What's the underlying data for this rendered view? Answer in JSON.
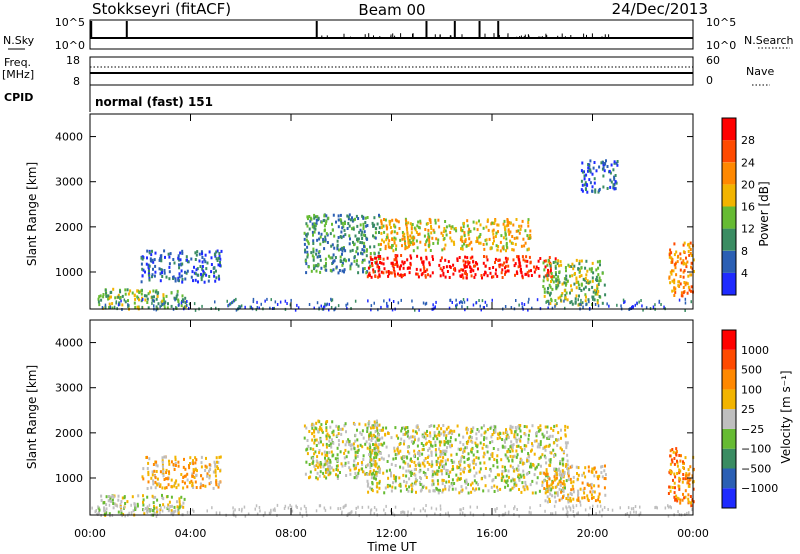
{
  "header": {
    "station": "Stokkseyri (fitACF)",
    "beam": "Beam 00",
    "date": "24/Dec/2013"
  },
  "top_panels": {
    "nsky_label": "N.Sky",
    "nsky_ticks": [
      "10^5",
      "10^0"
    ],
    "nsearch_label": "N.Search",
    "nsearch_ticks": [
      "10^5",
      "10^0"
    ],
    "freq_label": "Freq.",
    "freq_unit": "[MHz]",
    "freq_ticks": [
      "18",
      "8"
    ],
    "nave_label": "Nave",
    "nave_ticks": [
      "60",
      "0"
    ],
    "cpid_label": "CPID",
    "cpid_value": "normal (fast) 151"
  },
  "chart_data": [
    {
      "type": "heatmap",
      "name": "power",
      "ylabel": "Slant Range [km]",
      "ylim": [
        180,
        4500
      ],
      "yticks": [
        1000,
        2000,
        3000,
        4000
      ],
      "xlim_hours": [
        0,
        24
      ],
      "colorbar_label": "Power [dB]",
      "colorbar_ticks": [
        "4",
        "8",
        "12",
        "16",
        "20",
        "24",
        "28"
      ],
      "colors": [
        "#1f2bff",
        "#2b5fb4",
        "#3a8c62",
        "#66bb33",
        "#f2b400",
        "#ff8800",
        "#ff4a00",
        "#ff0000"
      ],
      "regions": [
        {
          "t0": 0.3,
          "t1": 3.8,
          "r0": 200,
          "r1": 650,
          "level": 3
        },
        {
          "t0": 2.0,
          "t1": 5.2,
          "r0": 800,
          "r1": 1500,
          "level": 1
        },
        {
          "t0": 8.5,
          "t1": 11.5,
          "r0": 1000,
          "r1": 2300,
          "level": 2
        },
        {
          "t0": 11.0,
          "t1": 18.5,
          "r0": 900,
          "r1": 1400,
          "level": 7
        },
        {
          "t0": 11.5,
          "t1": 17.5,
          "r0": 1500,
          "r1": 2200,
          "level": 4
        },
        {
          "t0": 18.0,
          "t1": 20.5,
          "r0": 300,
          "r1": 1300,
          "level": 3
        },
        {
          "t0": 23.0,
          "t1": 24.0,
          "r0": 500,
          "r1": 1700,
          "level": 5
        },
        {
          "t0": 19.5,
          "t1": 21.0,
          "r0": 2800,
          "r1": 3500,
          "level": 1
        }
      ]
    },
    {
      "type": "heatmap",
      "name": "velocity",
      "ylabel": "Slant Range [km]",
      "xlabel": "Time UT",
      "ylim": [
        180,
        4500
      ],
      "yticks": [
        1000,
        2000,
        3000,
        4000
      ],
      "xticks": [
        "00:00",
        "04:00",
        "08:00",
        "12:00",
        "16:00",
        "20:00",
        "00:00"
      ],
      "xlim_hours": [
        0,
        24
      ],
      "colorbar_label": "Velocity [m s⁻¹]",
      "colorbar_ticks": [
        "1000",
        "500",
        "100",
        "25",
        "−25",
        "−100",
        "−500",
        "−1000"
      ],
      "colors": [
        "#1f2bff",
        "#2b5fb4",
        "#3a8c62",
        "#66bb33",
        "#bfbfbf",
        "#f2b400",
        "#ff8800",
        "#ff4a00",
        "#ff0000"
      ],
      "regions": [
        {
          "t0": 0.3,
          "t1": 3.8,
          "r0": 200,
          "r1": 650,
          "level": 4
        },
        {
          "t0": 2.0,
          "t1": 5.2,
          "r0": 800,
          "r1": 1500,
          "level": 5
        },
        {
          "t0": 8.5,
          "t1": 11.5,
          "r0": 1000,
          "r1": 2300,
          "level": 4
        },
        {
          "t0": 11.0,
          "t1": 19.0,
          "r0": 700,
          "r1": 2200,
          "level": 4
        },
        {
          "t0": 18.0,
          "t1": 20.5,
          "r0": 500,
          "r1": 1300,
          "level": 5
        },
        {
          "t0": 23.0,
          "t1": 24.0,
          "r0": 400,
          "r1": 1700,
          "level": 6
        }
      ]
    }
  ],
  "xaxis": {
    "label": "Time UT",
    "ticks": [
      "00:00",
      "04:00",
      "08:00",
      "12:00",
      "16:00",
      "20:00",
      "00:00"
    ]
  }
}
